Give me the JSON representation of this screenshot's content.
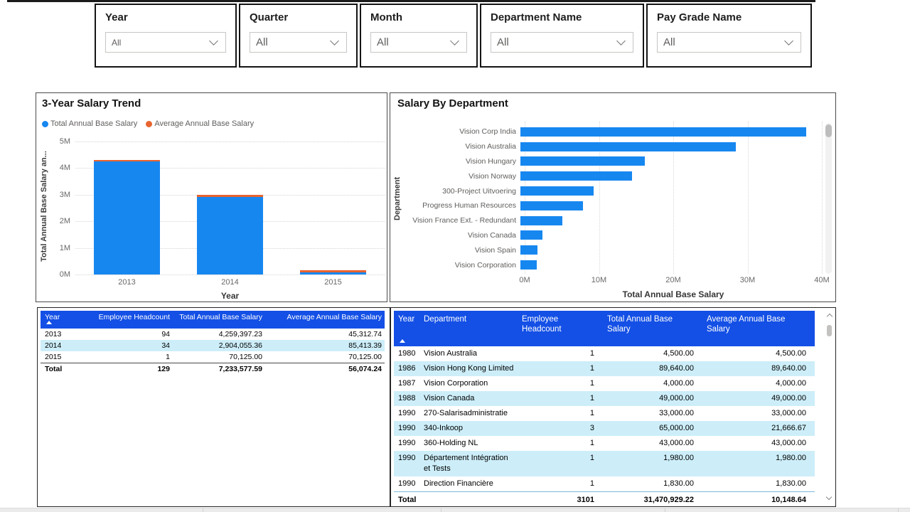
{
  "slicers": [
    {
      "label": "Year",
      "value": "All"
    },
    {
      "label": "Quarter",
      "value": "All"
    },
    {
      "label": "Month",
      "value": "All"
    },
    {
      "label": "Department Name",
      "value": "All"
    },
    {
      "label": "Pay Grade Name",
      "value": "All"
    }
  ],
  "colors": {
    "bar_blue": "#1787f0",
    "avg_orange": "#e8642f",
    "header_blue": "#1450e6",
    "row_alt_blue": "#cdeef9"
  },
  "chart_data": [
    {
      "id": "trend",
      "type": "bar",
      "stacked": true,
      "title": "3-Year Salary Trend",
      "categories": [
        "2013",
        "2014",
        "2015"
      ],
      "series": [
        {
          "name": "Total Annual Base Salary",
          "color": "#1787f0",
          "values": [
            4259397.23,
            2904055.36,
            70125.0
          ]
        },
        {
          "name": "Average Annual Base Salary",
          "color": "#e8642f",
          "values": [
            45312.74,
            85413.39,
            70125.0
          ]
        }
      ],
      "xlabel": "Year",
      "ylabel": "Total Annual Base Salary an...",
      "ylim": [
        0,
        5000000
      ],
      "yticks": [
        "0M",
        "1M",
        "2M",
        "3M",
        "4M",
        "5M"
      ],
      "legend_position": "top",
      "grid": "horizontal-dotted"
    },
    {
      "id": "salary-by-department",
      "type": "bar-horizontal",
      "title": "Salary By Department",
      "categories": [
        "Vision Corp India",
        "Vision Australia",
        "Vision Hungary",
        "Vision Norway",
        "300-Project Uitvoering",
        "Progress Human Resources",
        "Vision France Ext. - Redundant",
        "Vision Canada",
        "Vision Spain",
        "Vision Corporation"
      ],
      "values": [
        38500000,
        29000000,
        16700000,
        15000000,
        9900000,
        8400000,
        5600000,
        3000000,
        2300000,
        2200000
      ],
      "bar_color": "#1787f0",
      "xlabel": "Total Annual Base Salary",
      "ylabel": "Department",
      "xlim": [
        0,
        40000000
      ],
      "xticks": [
        "0M",
        "10M",
        "20M",
        "30M",
        "40M"
      ],
      "grid": "vertical-dotted",
      "scrollbar": true
    },
    {
      "id": "salary-by-year-table",
      "type": "table",
      "sort": {
        "column": "Year",
        "direction": "asc"
      },
      "columns": [
        "Year",
        "Employee Headcount",
        "Total Annual Base Salary",
        "Average Annual Base Salary"
      ],
      "rows": [
        [
          "2013",
          "94",
          "4,259,397.23",
          "45,312.74"
        ],
        [
          "2014",
          "34",
          "2,904,055.36",
          "85,413.39"
        ],
        [
          "2015",
          "1",
          "70,125.00",
          "70,125.00"
        ]
      ],
      "total": [
        "Total",
        "129",
        "7,233,577.59",
        "56,074.24"
      ]
    },
    {
      "id": "salary-by-year-department-table",
      "type": "table",
      "sort": {
        "column": "Year",
        "direction": "asc"
      },
      "columns": [
        "Year",
        "Department",
        "Employee Headcount",
        "Total Annual Base Salary",
        "Average Annual Base Salary"
      ],
      "rows": [
        [
          "1980",
          "Vision Australia",
          "1",
          "4,500.00",
          "4,500.00"
        ],
        [
          "1986",
          "Vision Hong Kong Limited",
          "1",
          "89,640.00",
          "89,640.00"
        ],
        [
          "1987",
          "Vision Corporation",
          "1",
          "4,000.00",
          "4,000.00"
        ],
        [
          "1988",
          "Vision Canada",
          "1",
          "49,000.00",
          "49,000.00"
        ],
        [
          "1990",
          "270-Salarisadministratie",
          "1",
          "33,000.00",
          "33,000.00"
        ],
        [
          "1990",
          "340-Inkoop",
          "3",
          "65,000.00",
          "21,666.67"
        ],
        [
          "1990",
          "360-Holding NL",
          "1",
          "43,000.00",
          "43,000.00"
        ],
        [
          "1990",
          "Département Intégration et Tests",
          "1",
          "1,980.00",
          "1,980.00"
        ],
        [
          "1990",
          "Direction Financière",
          "1",
          "1,830.00",
          "1,830.00"
        ]
      ],
      "total": [
        "Total",
        "3101",
        "31,470,929.22",
        "10,148.64"
      ]
    }
  ]
}
